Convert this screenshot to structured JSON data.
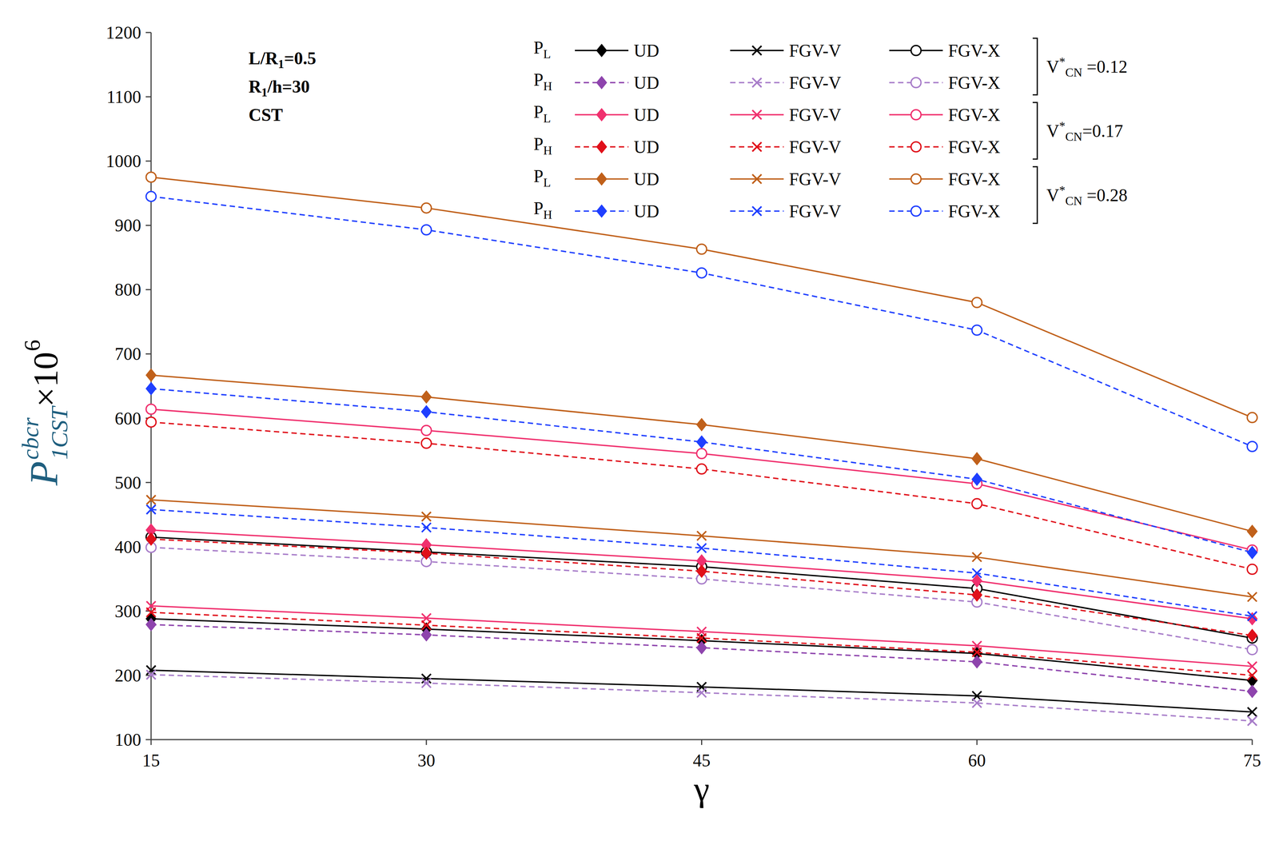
{
  "chart_data": {
    "type": "line",
    "x": [
      15,
      30,
      45,
      60,
      75
    ],
    "xlim": [
      15,
      75
    ],
    "xticks": [
      15,
      30,
      45,
      60,
      75
    ],
    "ylim": [
      100,
      1200
    ],
    "yticks": [
      100,
      200,
      300,
      400,
      500,
      600,
      700,
      800,
      900,
      1000,
      1100,
      1200
    ],
    "grid": false,
    "legend": "top",
    "x_label": "γ",
    "y_label": {
      "base": "P",
      "sup": "cbcr",
      "sub": "1CST",
      "times": " ×10",
      "power": "6"
    },
    "annotations": [
      [
        {
          "text": "L/R"
        },
        {
          "text": "1",
          "sub": true
        },
        {
          "text": "=0.5"
        }
      ],
      [
        {
          "text": "R"
        },
        {
          "text": "1",
          "sub": true
        },
        {
          "text": "/h=30"
        }
      ],
      [
        {
          "text": "CST"
        }
      ]
    ],
    "load_symbol": "P",
    "group_symbol": {
      "text": "V",
      "sup": "*",
      "sub": "CN"
    },
    "series": [
      {
        "name": "UD",
        "group": " =0.12",
        "load": "L",
        "color": "#000000",
        "marker": "diamond",
        "line_style": "solid",
        "values": [
          288,
          272,
          254,
          234,
          192
        ]
      },
      {
        "name": "FGV-V",
        "group": " =0.12",
        "load": "L",
        "color": "#000000",
        "marker": "x",
        "line_style": "solid",
        "values": [
          208,
          195,
          182,
          168,
          143
        ]
      },
      {
        "name": "FGV-X",
        "group": " =0.12",
        "load": "L",
        "color": "#000000",
        "marker": "open-circle",
        "line_style": "solid",
        "values": [
          415,
          392,
          369,
          335,
          258
        ]
      },
      {
        "name": "UD",
        "group": " =0.12",
        "load": "H",
        "color": "#8e44ad",
        "marker": "diamond",
        "line_style": "dashed",
        "values": [
          279,
          263,
          243,
          221,
          175
        ]
      },
      {
        "name": "FGV-V",
        "group": " =0.12",
        "load": "H",
        "color": "#a77cc9",
        "marker": "x",
        "line_style": "dashed",
        "values": [
          201,
          188,
          173,
          157,
          129
        ]
      },
      {
        "name": "FGV-X",
        "group": " =0.12",
        "load": "H",
        "color": "#a77cc9",
        "marker": "open-circle",
        "line_style": "dashed",
        "values": [
          399,
          377,
          350,
          314,
          240
        ]
      },
      {
        "name": "UD",
        "group": "=0.17",
        "load": "L",
        "color": "#f0306e",
        "marker": "diamond",
        "line_style": "solid",
        "values": [
          426,
          403,
          378,
          347,
          288
        ]
      },
      {
        "name": "FGV-V",
        "group": "=0.17",
        "load": "L",
        "color": "#f0306e",
        "marker": "x",
        "line_style": "solid",
        "values": [
          308,
          289,
          268,
          246,
          214
        ]
      },
      {
        "name": "FGV-X",
        "group": "=0.17",
        "load": "L",
        "color": "#f0306e",
        "marker": "open-circle",
        "line_style": "solid",
        "values": [
          614,
          581,
          545,
          498,
          395
        ]
      },
      {
        "name": "UD",
        "group": "=0.17",
        "load": "H",
        "color": "#e0101a",
        "marker": "diamond",
        "line_style": "dashed",
        "values": [
          412,
          390,
          362,
          325,
          262
        ]
      },
      {
        "name": "FGV-V",
        "group": "=0.17",
        "load": "H",
        "color": "#e0101a",
        "marker": "x",
        "line_style": "dashed",
        "values": [
          298,
          278,
          258,
          236,
          200
        ]
      },
      {
        "name": "FGV-X",
        "group": "=0.17",
        "load": "H",
        "color": "#e0101a",
        "marker": "open-circle",
        "line_style": "dashed",
        "values": [
          594,
          561,
          521,
          467,
          365
        ]
      },
      {
        "name": "UD",
        "group": " =0.28",
        "load": "L",
        "color": "#c0601a",
        "marker": "diamond",
        "line_style": "solid",
        "values": [
          667,
          633,
          590,
          537,
          424
        ]
      },
      {
        "name": "FGV-V",
        "group": " =0.28",
        "load": "L",
        "color": "#c0601a",
        "marker": "x",
        "line_style": "solid",
        "values": [
          473,
          447,
          417,
          384,
          322
        ]
      },
      {
        "name": "FGV-X",
        "group": " =0.28",
        "load": "L",
        "color": "#c0601a",
        "marker": "open-circle",
        "line_style": "solid",
        "values": [
          975,
          927,
          863,
          780,
          601
        ]
      },
      {
        "name": "UD",
        "group": " =0.28",
        "load": "H",
        "color": "#1f3fff",
        "marker": "diamond",
        "line_style": "dashed",
        "values": [
          646,
          610,
          563,
          505,
          391
        ]
      },
      {
        "name": "FGV-V",
        "group": " =0.28",
        "load": "H",
        "color": "#1f3fff",
        "marker": "x",
        "line_style": "dashed",
        "values": [
          458,
          430,
          398,
          359,
          292
        ]
      },
      {
        "name": "FGV-X",
        "group": " =0.28",
        "load": "H",
        "color": "#1f3fff",
        "marker": "open-circle",
        "line_style": "dashed",
        "values": [
          945,
          893,
          826,
          737,
          556
        ]
      }
    ]
  }
}
